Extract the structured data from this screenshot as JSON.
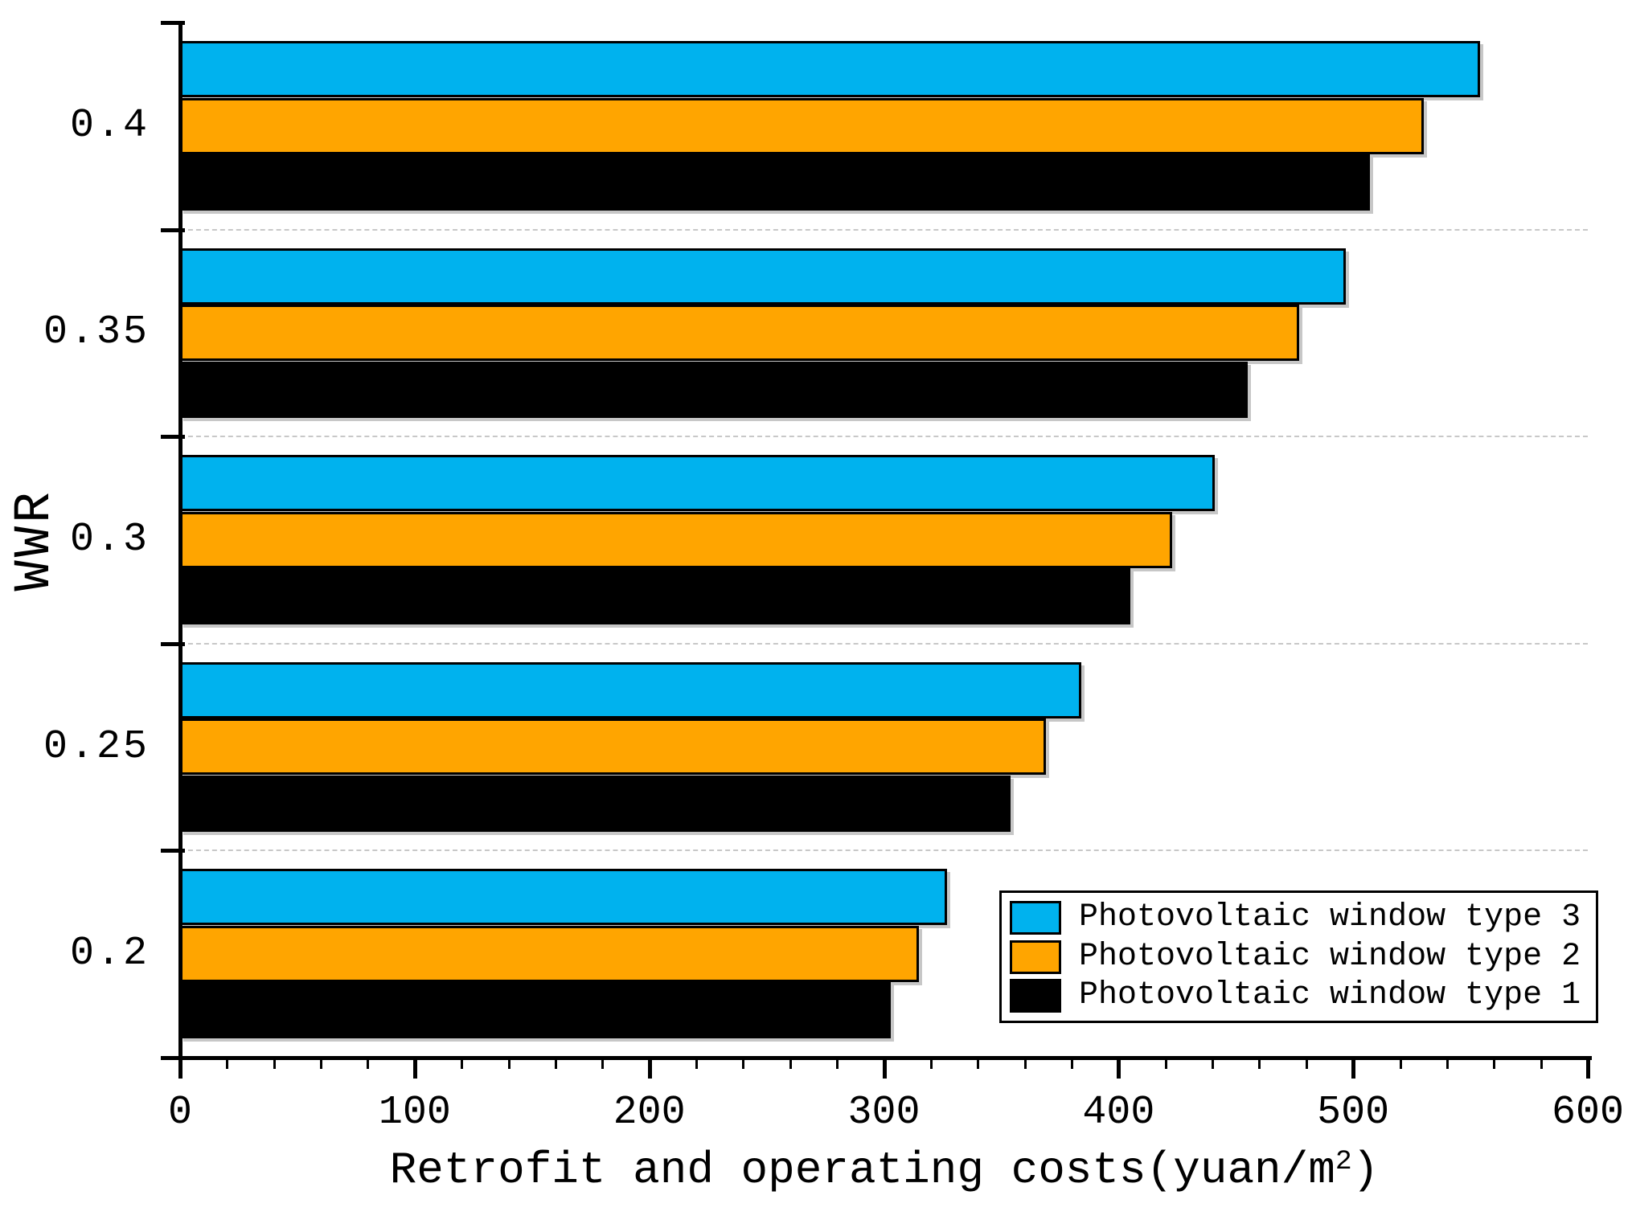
{
  "chart_data": {
    "type": "bar",
    "orientation": "horizontal",
    "title": "",
    "xlabel": "Retrofit and operating costs(yuan/m²)",
    "xlabel_parts": {
      "main": "Retrofit and operating costs(yuan/m",
      "superscript": "2",
      "suffix": ")"
    },
    "ylabel": "WWR",
    "xlim": [
      0,
      600
    ],
    "x_major_ticks": [
      0,
      100,
      200,
      300,
      400,
      500,
      600
    ],
    "x_minor_tick_step": 20,
    "categories": [
      "0.4",
      "0.35",
      "0.3",
      "0.25",
      "0.2"
    ],
    "category_axis_order": "top-to-bottom",
    "series": [
      {
        "name": "Photovoltaic window type 3",
        "color": "#00B2EE",
        "values": [
          554,
          497,
          441,
          384,
          327
        ]
      },
      {
        "name": "Photovoltaic window type 2",
        "color": "#FFA500",
        "values": [
          530,
          477,
          423,
          369,
          315
        ]
      },
      {
        "name": "Photovoltaic window type 1",
        "color": "#000000",
        "values": [
          507,
          455,
          405,
          354,
          303
        ]
      }
    ],
    "legend": {
      "position": "lower-right",
      "entries": [
        "Photovoltaic window type 3",
        "Photovoltaic window type 2",
        "Photovoltaic window type 1"
      ]
    },
    "grid": {
      "between_groups": true,
      "style": "dashed",
      "color": "#C8C8C8"
    },
    "background": "#FFFFFF"
  }
}
